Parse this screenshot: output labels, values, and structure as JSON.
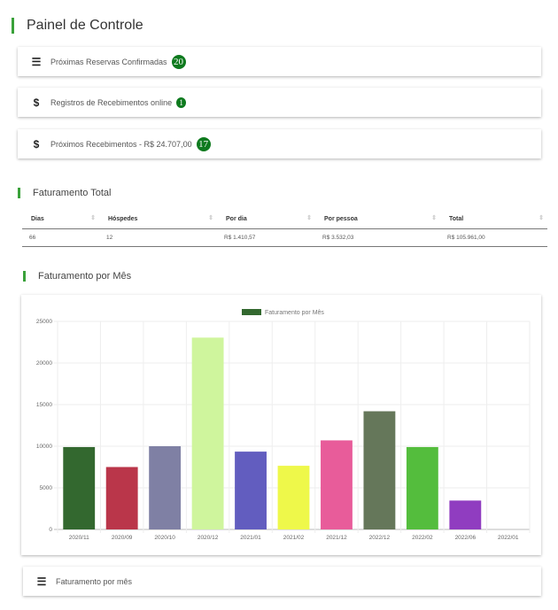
{
  "header": {
    "title": "Painel de Controle"
  },
  "cards": [
    {
      "icon": "list-icon",
      "label": "Próximas Reservas Confirmadas",
      "badge": "20"
    },
    {
      "icon": "dollar-icon",
      "label": "Registros de Recebimentos online",
      "badge": "1"
    },
    {
      "icon": "dollar-icon",
      "label": "Próximos Recebimentos - R$ 24.707,00",
      "badge": "17"
    }
  ],
  "totals": {
    "title": "Faturamento Total",
    "columns": [
      "Dias",
      "Hóspedes",
      "Por dia",
      "Por pessoa",
      "Total"
    ],
    "rows": [
      [
        "66",
        "12",
        "R$ 1.410,57",
        "R$ 3.532,03",
        "R$ 105.961,00"
      ]
    ]
  },
  "monthly": {
    "title": "Faturamento por Mês"
  },
  "chart_data": {
    "type": "bar",
    "legend": "Faturamento por Mês",
    "legend_placement": "top",
    "categories": [
      "2020/11",
      "2020/09",
      "2020/10",
      "2020/12",
      "2021/01",
      "2021/02",
      "2021/12",
      "2022/12",
      "2022/02",
      "2022/06",
      "2022/01"
    ],
    "values": [
      9900,
      7500,
      10000,
      23050,
      9350,
      7650,
      10700,
      14200,
      9900,
      3470,
      0
    ],
    "colors": [
      "#33682f",
      "#ba364a",
      "#7f80a4",
      "#cff59d",
      "#625dbf",
      "#eef84a",
      "#e85c9a",
      "#65775a",
      "#54bd3d",
      "#903dc0",
      "#cccccc"
    ],
    "legend_color": "#33682f",
    "ylim": [
      0,
      25000
    ],
    "yticks": [
      "0",
      "5000",
      "10000",
      "15000",
      "20000",
      "25000"
    ],
    "grid": true
  },
  "footer_card": {
    "icon": "list-icon",
    "label": "Faturamento por mês"
  }
}
